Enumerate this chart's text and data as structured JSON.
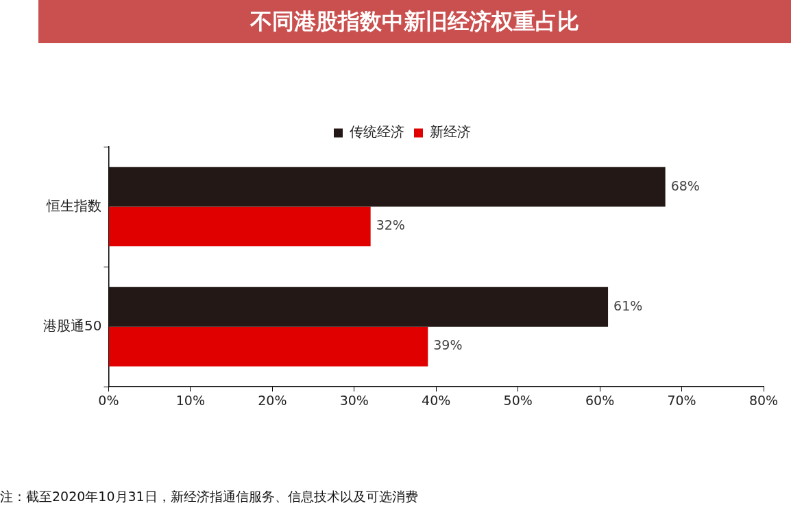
{
  "chart_data": {
    "type": "bar",
    "title": "不同港股指数中新旧经济权重占比",
    "orientation": "horizontal",
    "categories": [
      "恒生指数",
      "港股通50"
    ],
    "series": [
      {
        "name": "传统经济",
        "color": "#231815",
        "values": [
          68,
          61
        ],
        "value_labels": [
          "68%",
          "61%"
        ]
      },
      {
        "name": "新经济",
        "color": "#e00000",
        "values": [
          32,
          39
        ],
        "value_labels": [
          "32%",
          "39%"
        ]
      }
    ],
    "xlim": [
      0,
      80
    ],
    "xticks": [
      {
        "value": 0,
        "label": "0%"
      },
      {
        "value": 10,
        "label": "10%"
      },
      {
        "value": 20,
        "label": "20%"
      },
      {
        "value": 30,
        "label": "30%"
      },
      {
        "value": 40,
        "label": "40%"
      },
      {
        "value": 50,
        "label": "50%"
      },
      {
        "value": 60,
        "label": "60%"
      },
      {
        "value": 70,
        "label": "70%"
      },
      {
        "value": 80,
        "label": "80%"
      }
    ],
    "grid": false,
    "legend": "top",
    "annotations": [
      "注：截至2020年10月31日，新经济指通信服务、信息技术以及可选消费"
    ]
  }
}
